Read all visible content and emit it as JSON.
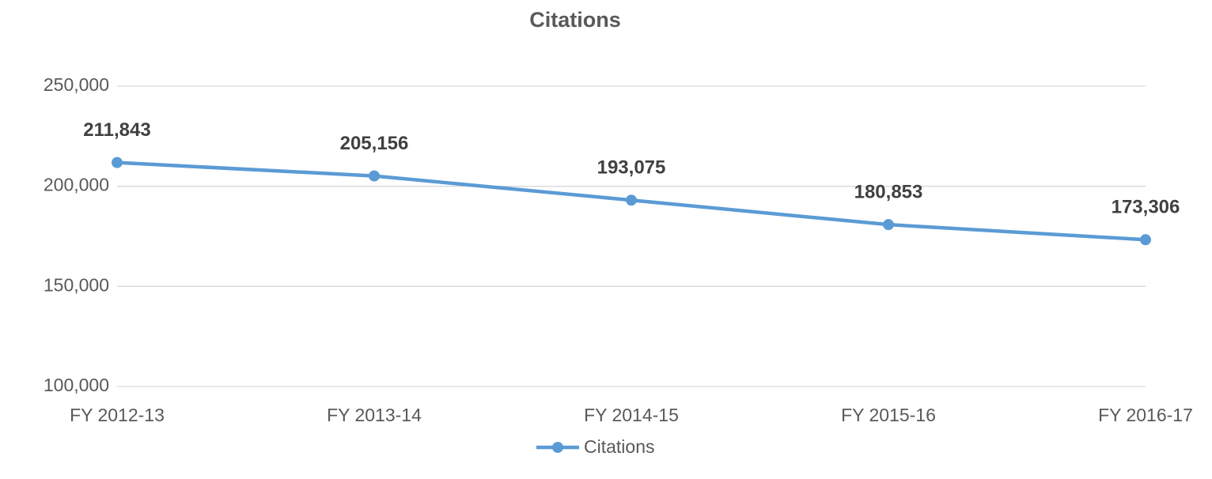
{
  "chart_data": {
    "type": "line",
    "title": "Citations",
    "categories": [
      "FY 2012-13",
      "FY 2013-14",
      "FY 2014-15",
      "FY 2015-16",
      "FY 2016-17"
    ],
    "series": [
      {
        "name": "Citations",
        "color": "#5b9bd5",
        "values": [
          211843,
          205156,
          193075,
          180853,
          173306
        ],
        "value_labels": [
          "211,843",
          "205,156",
          "193,075",
          "180,853",
          "173,306"
        ]
      }
    ],
    "ylim": [
      100000,
      250000
    ],
    "yticks": [
      {
        "value": 100000,
        "label": "100,000"
      },
      {
        "value": 150000,
        "label": "150,000"
      },
      {
        "value": 200000,
        "label": "200,000"
      },
      {
        "value": 250000,
        "label": "250,000"
      }
    ],
    "grid": true,
    "legend": "bottom"
  }
}
